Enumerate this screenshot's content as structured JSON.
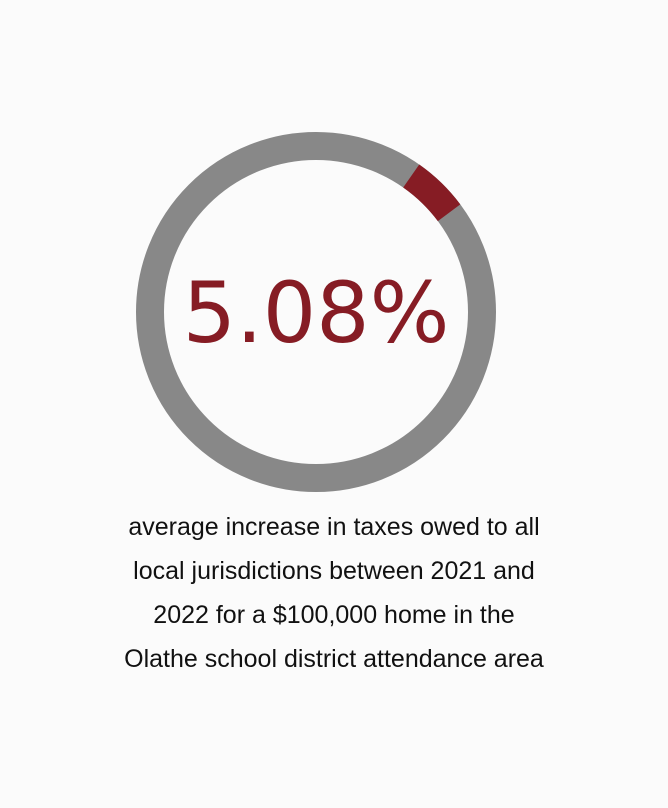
{
  "colors": {
    "background": "#fbfbfb",
    "track": "#888888",
    "accent": "#861c24",
    "text": "#111111"
  },
  "chart_data": {
    "type": "pie",
    "style": "donut",
    "value_percent": 5.08,
    "display_value": "5.08%",
    "caption_lines": [
      "average increase in taxes owed to all",
      "local jurisdictions between 2021 and",
      "2022 for a $100,000 home in the",
      "Olathe school district attendance area"
    ]
  }
}
